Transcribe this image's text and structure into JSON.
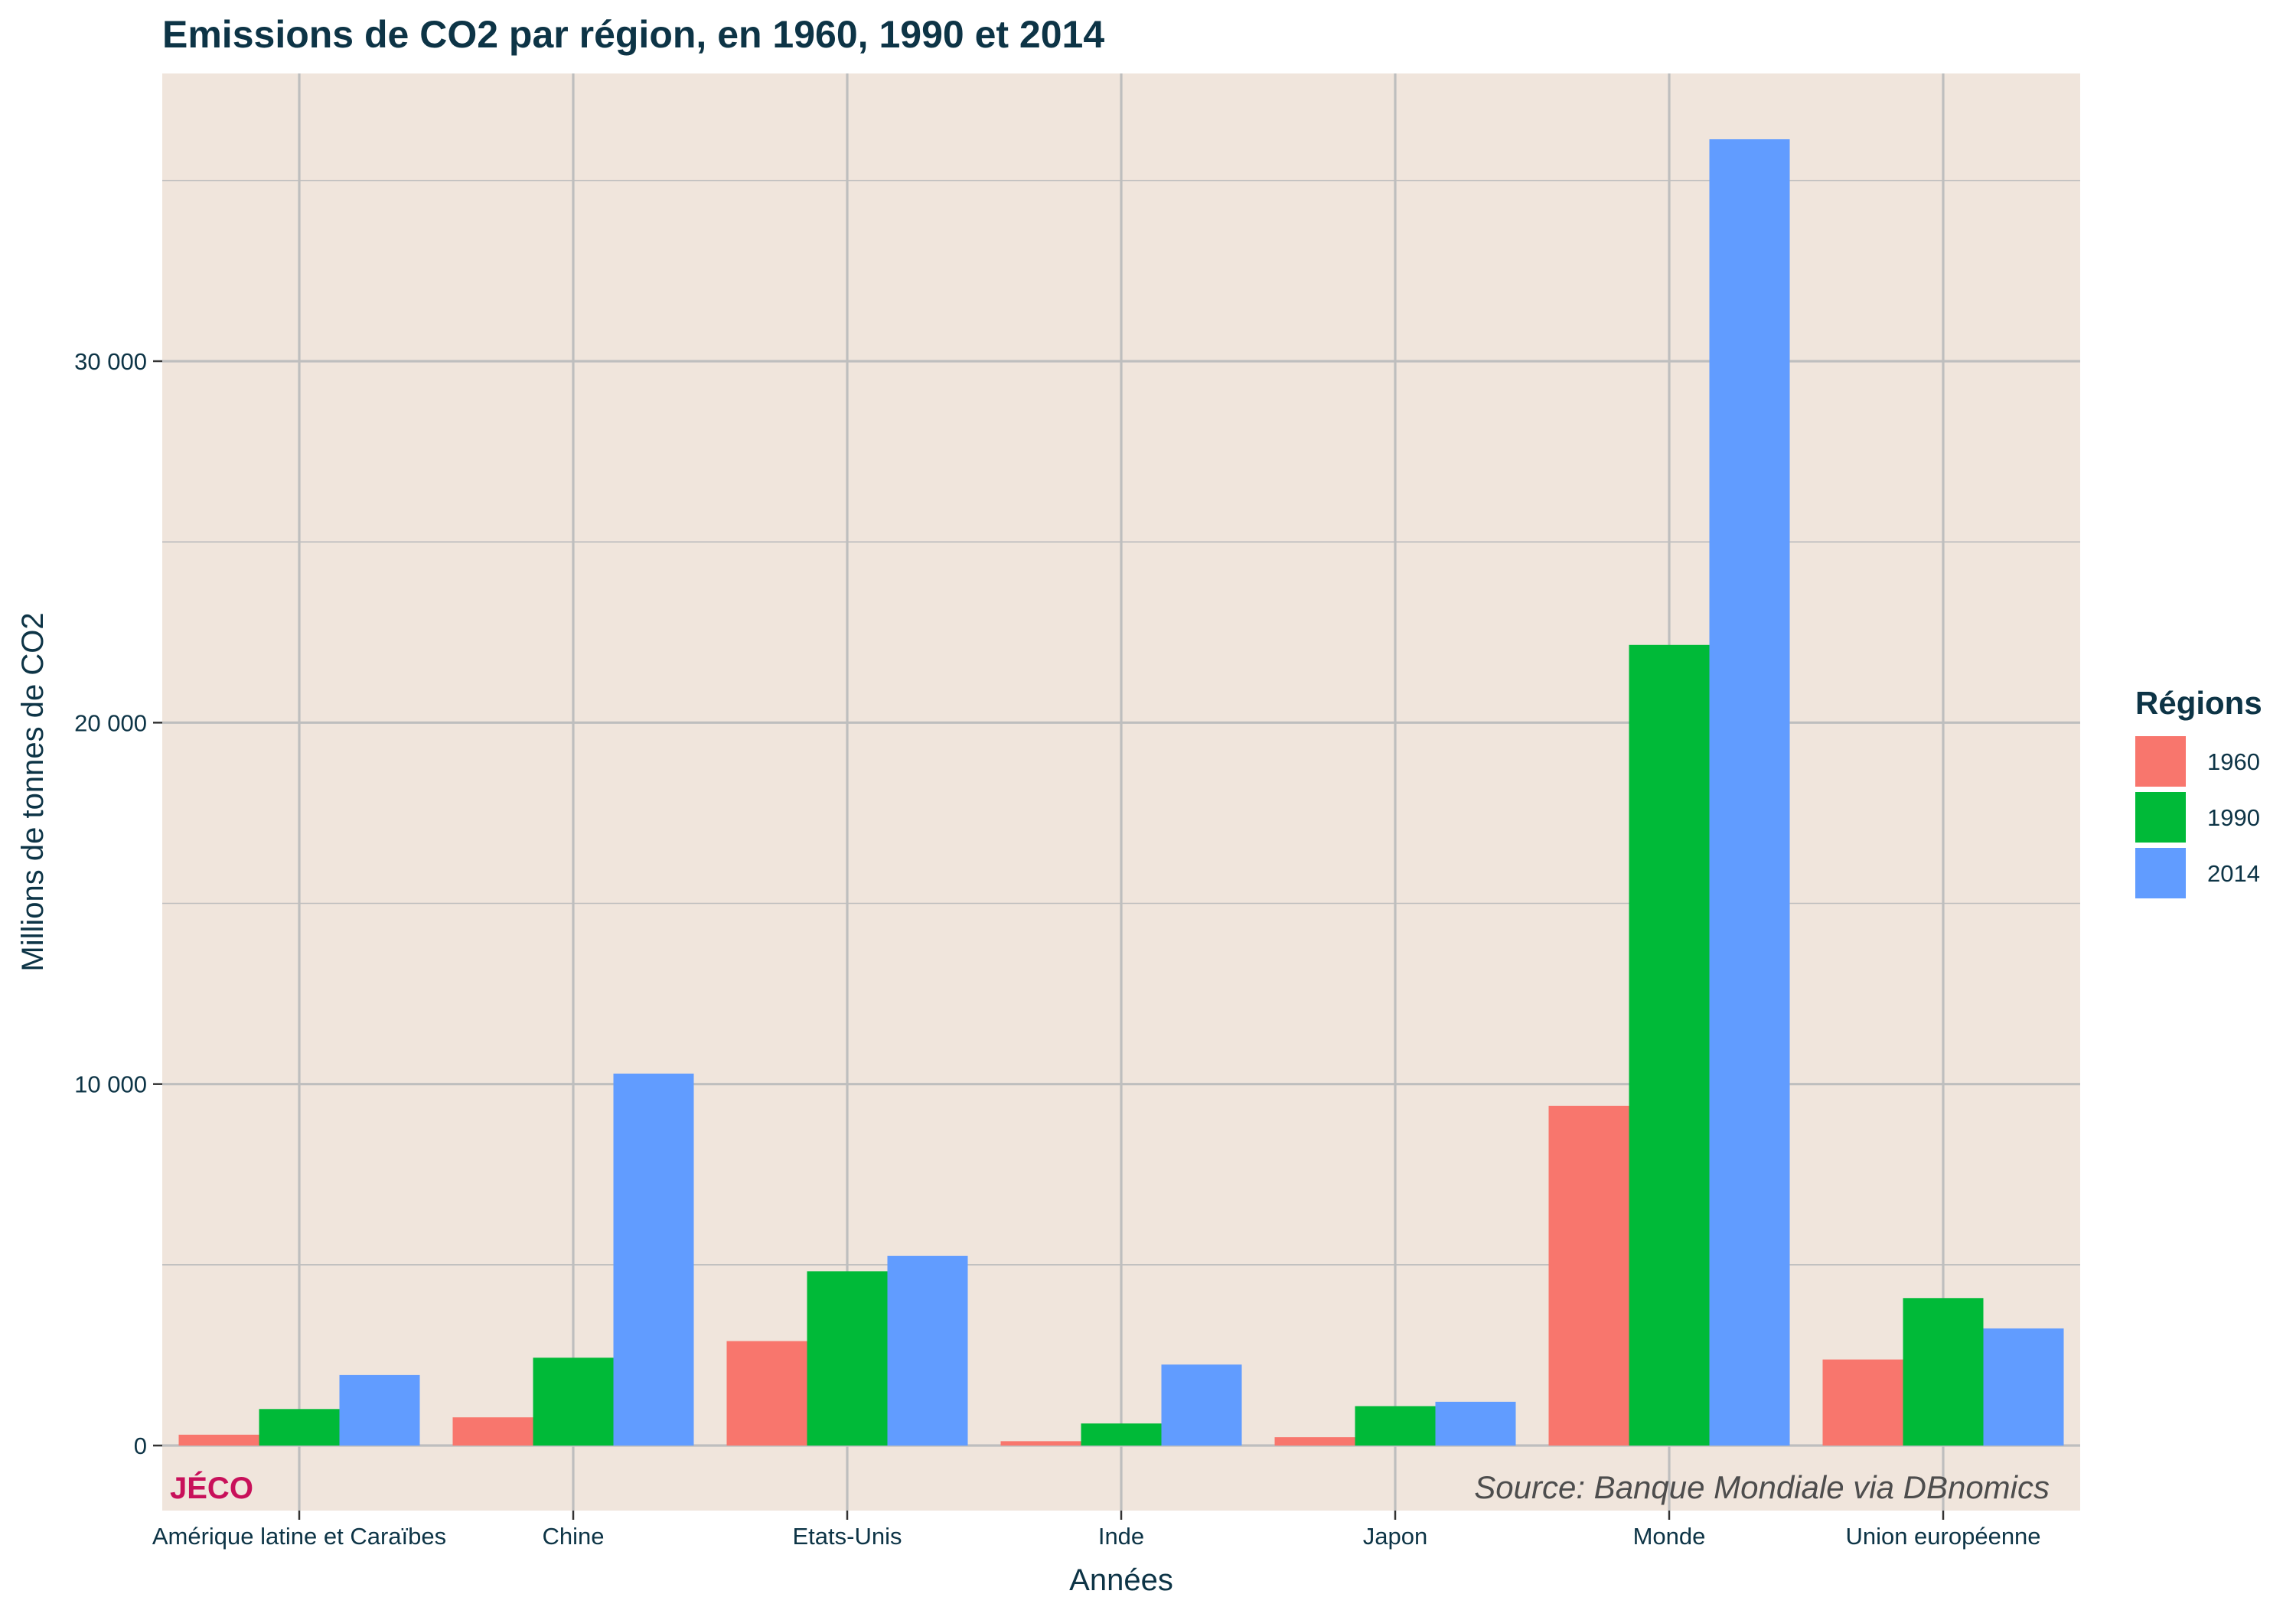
{
  "chart_data": {
    "type": "bar",
    "title": "Emissions de CO2 par région, en 1960, 1990 et 2014",
    "xlabel": "Années",
    "ylabel": "Millions de tonnes de CO2",
    "categories": [
      "Amérique latine et Caraïbes",
      "Chine",
      "Etats-Unis",
      "Inde",
      "Japon",
      "Monde",
      "Union européenne"
    ],
    "series": [
      {
        "name": "1960",
        "color": "#F8766D",
        "values": [
          300,
          780,
          2890,
          120,
          230,
          9400,
          2380
        ]
      },
      {
        "name": "1990",
        "color": "#00BA38",
        "values": [
          1010,
          2430,
          4820,
          610,
          1090,
          22150,
          4080
        ]
      },
      {
        "name": "2014",
        "color": "#619CFF",
        "values": [
          1950,
          10290,
          5250,
          2240,
          1210,
          36140,
          3240
        ]
      }
    ],
    "ylim": [
      -1800,
      38000
    ],
    "y_ticks": [
      {
        "value": 0,
        "label": "0"
      },
      {
        "value": 10000,
        "label": "10 000"
      },
      {
        "value": 20000,
        "label": "20 000"
      },
      {
        "value": 30000,
        "label": "30 000"
      }
    ],
    "y_minor_ticks": [
      5000,
      15000,
      25000,
      35000
    ],
    "grid": true,
    "legend": {
      "title": "Régions",
      "position": "right"
    },
    "annotations": {
      "brand": "JÉCO",
      "brand_color": "#C8105A",
      "source": "Source: Banque Mondiale via DBnomics"
    },
    "panel_background": "#F0E5DC",
    "grid_color": "#BEBEBE"
  }
}
